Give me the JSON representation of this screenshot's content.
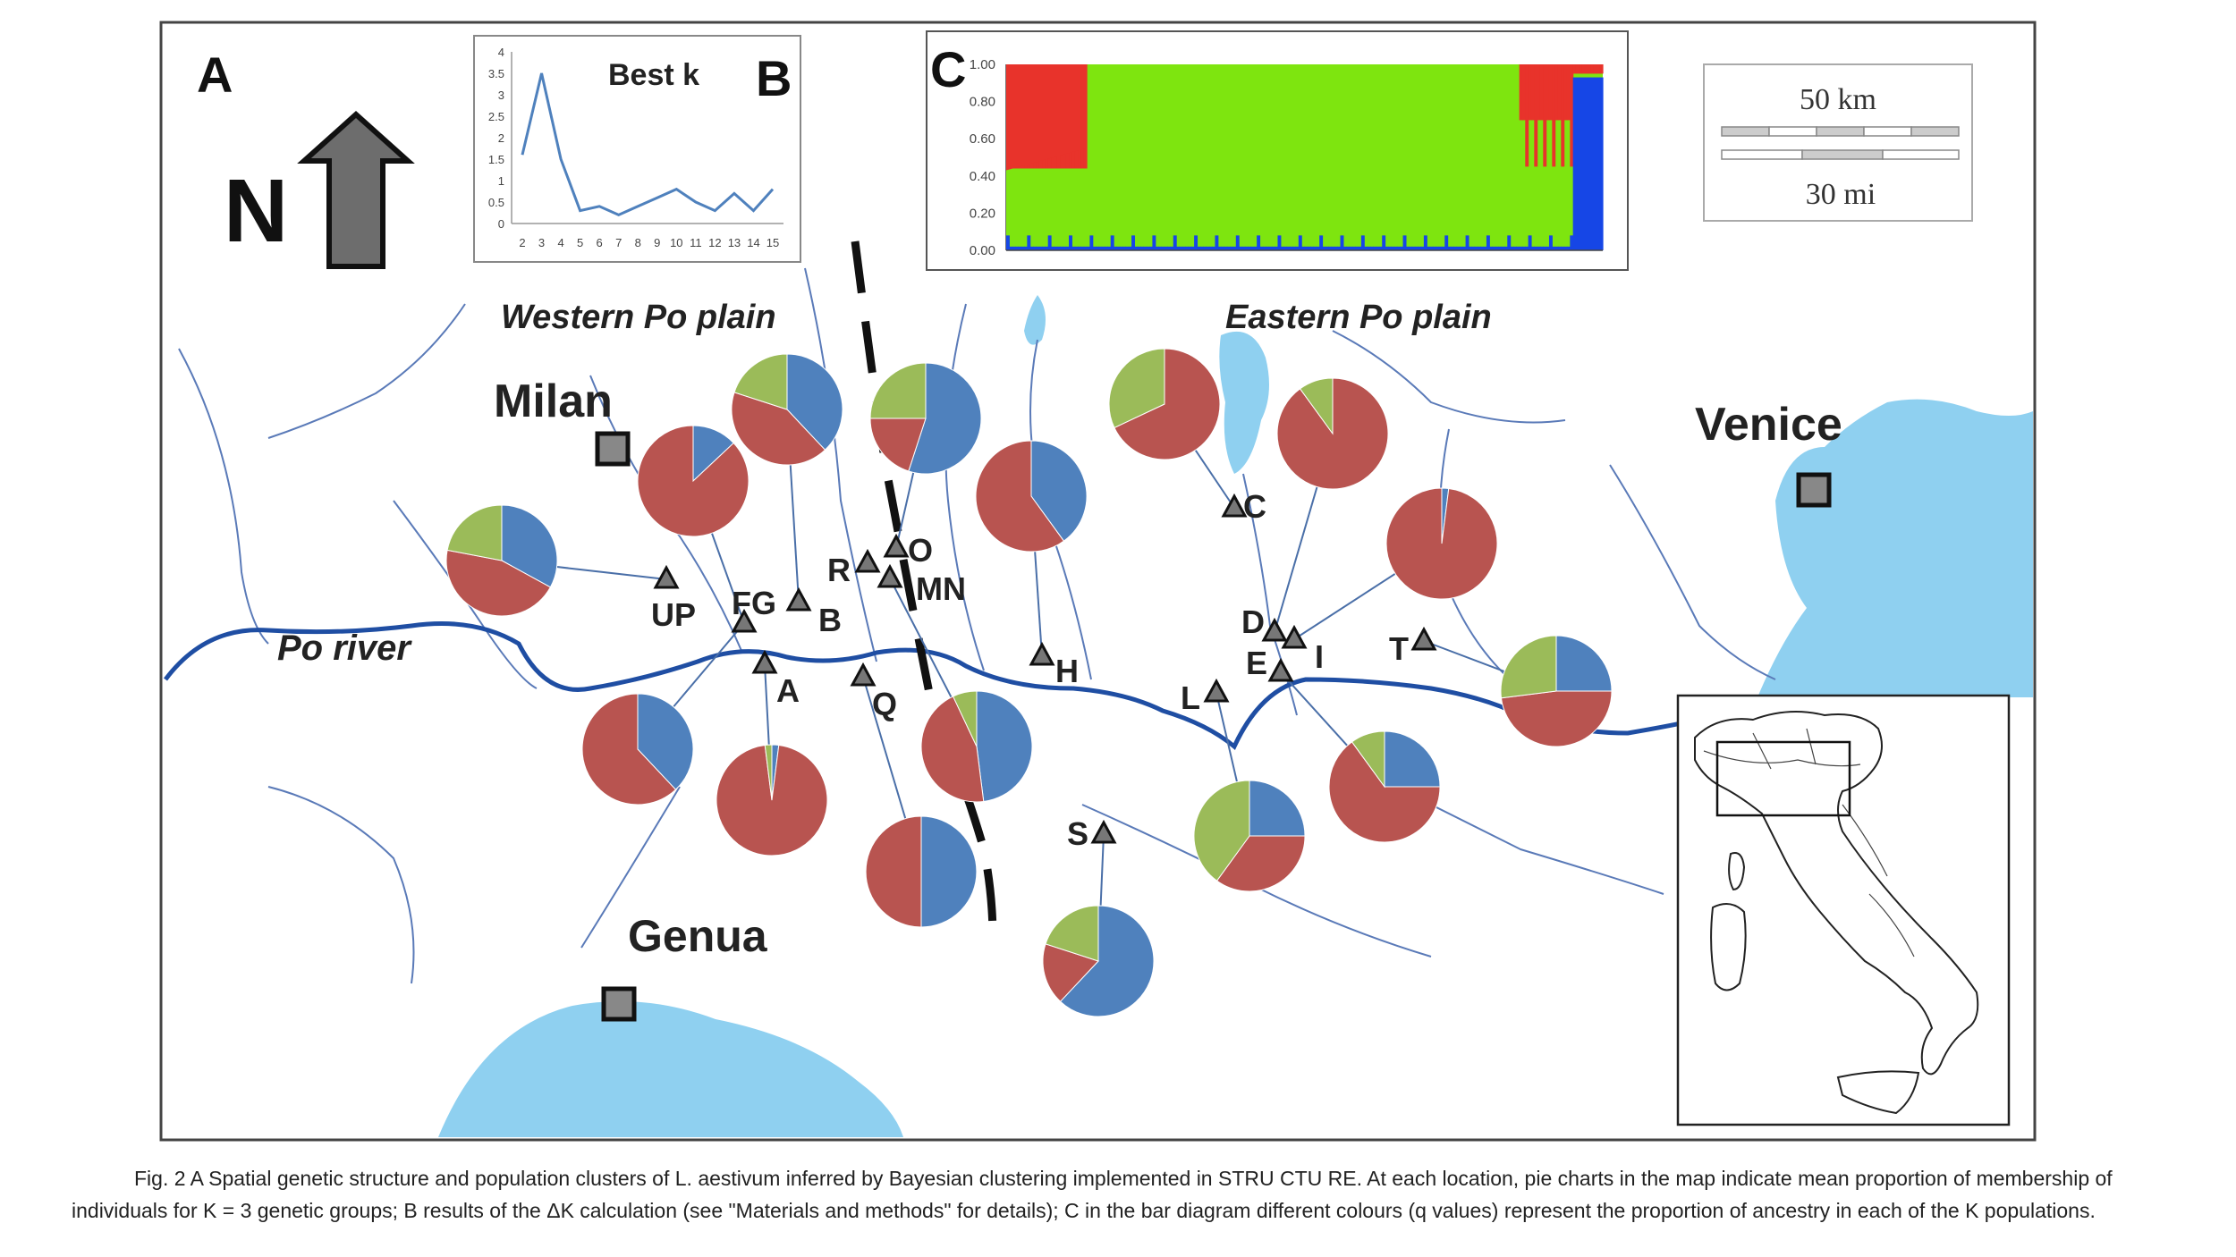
{
  "panels": {
    "a": "A",
    "b": "B",
    "c": "C"
  },
  "north": "N",
  "regions": {
    "west": "Western Po plain",
    "east": "Eastern Po plain"
  },
  "river": "Po river",
  "cities": [
    {
      "name": "Milan",
      "x": 685,
      "y": 502,
      "lx": 552,
      "ly": 466,
      "size": 52
    },
    {
      "name": "Venice",
      "x": 2028,
      "y": 548,
      "lx": 1895,
      "ly": 492,
      "size": 52
    },
    {
      "name": "Genua",
      "x": 692,
      "y": 1123,
      "lx": 702,
      "ly": 1064,
      "size": 50
    }
  ],
  "scale": {
    "km": "50 km",
    "mi": "30 mi"
  },
  "colors": {
    "red": "#b85450",
    "blue": "#4f81bd",
    "green": "#9bbb59",
    "water": "#8fd0f0",
    "river": "#1f4ea3",
    "bar_red": "#e8332b",
    "bar_green": "#7ee50f",
    "bar_blue": "#1646e6"
  },
  "sites": [
    {
      "label": "UP",
      "x": 745,
      "y": 648,
      "lx": 728,
      "ly": 700
    },
    {
      "label": "FG",
      "x": 832,
      "y": 697,
      "lx": 818,
      "ly": 687
    },
    {
      "label": "B",
      "x": 893,
      "y": 673,
      "lx": 915,
      "ly": 706
    },
    {
      "label": "A",
      "x": 855,
      "y": 743,
      "lx": 868,
      "ly": 785
    },
    {
      "label": "Q",
      "x": 965,
      "y": 757,
      "lx": 975,
      "ly": 800
    },
    {
      "label": "R",
      "x": 970,
      "y": 630,
      "lx": 925,
      "ly": 650
    },
    {
      "label": "O",
      "x": 1002,
      "y": 613,
      "lx": 1015,
      "ly": 628
    },
    {
      "label": "MN",
      "x": 995,
      "y": 647,
      "lx": 1024,
      "ly": 671
    },
    {
      "label": "H",
      "x": 1165,
      "y": 734,
      "lx": 1180,
      "ly": 763
    },
    {
      "label": "C",
      "x": 1380,
      "y": 568,
      "lx": 1390,
      "ly": 579
    },
    {
      "label": "D",
      "x": 1425,
      "y": 707,
      "lx": 1388,
      "ly": 708
    },
    {
      "label": "I",
      "x": 1447,
      "y": 715,
      "lx": 1470,
      "ly": 747
    },
    {
      "label": "E",
      "x": 1432,
      "y": 752,
      "lx": 1393,
      "ly": 754
    },
    {
      "label": "L",
      "x": 1360,
      "y": 775,
      "lx": 1320,
      "ly": 793
    },
    {
      "label": "T",
      "x": 1592,
      "y": 717,
      "lx": 1553,
      "ly": 738
    },
    {
      "label": "S",
      "x": 1234,
      "y": 933,
      "lx": 1193,
      "ly": 945
    }
  ],
  "pies": [
    {
      "x": 561,
      "y": 627,
      "r": 62,
      "red": 0.45,
      "blue": 0.33,
      "green": 0.22,
      "site": 0
    },
    {
      "x": 775,
      "y": 538,
      "r": 62,
      "red": 0.87,
      "blue": 0.13,
      "green": 0.0,
      "site": 1
    },
    {
      "x": 880,
      "y": 458,
      "r": 62,
      "red": 0.42,
      "blue": 0.38,
      "green": 0.2,
      "site": 2
    },
    {
      "x": 1035,
      "y": 468,
      "r": 62,
      "red": 0.2,
      "blue": 0.55,
      "green": 0.25,
      "site": 6
    },
    {
      "x": 1153,
      "y": 555,
      "r": 62,
      "red": 0.6,
      "blue": 0.4,
      "green": 0.0,
      "site": 8
    },
    {
      "x": 1302,
      "y": 452,
      "r": 62,
      "red": 0.68,
      "blue": 0.0,
      "green": 0.32,
      "site": 9
    },
    {
      "x": 1490,
      "y": 485,
      "r": 62,
      "red": 0.9,
      "blue": 0.0,
      "green": 0.1,
      "site": 10
    },
    {
      "x": 1612,
      "y": 608,
      "r": 62,
      "red": 0.98,
      "blue": 0.02,
      "green": 0.0,
      "site": 11
    },
    {
      "x": 1740,
      "y": 773,
      "r": 62,
      "red": 0.48,
      "blue": 0.25,
      "green": 0.27,
      "site": 14
    },
    {
      "x": 1548,
      "y": 880,
      "r": 62,
      "red": 0.65,
      "blue": 0.25,
      "green": 0.1,
      "site": 12
    },
    {
      "x": 1397,
      "y": 935,
      "r": 62,
      "red": 0.35,
      "blue": 0.25,
      "green": 0.4,
      "site": 13
    },
    {
      "x": 1228,
      "y": 1075,
      "r": 62,
      "red": 0.18,
      "blue": 0.62,
      "green": 0.2,
      "site": 15
    },
    {
      "x": 1030,
      "y": 975,
      "r": 62,
      "red": 0.5,
      "blue": 0.5,
      "green": 0.0,
      "site": 4
    },
    {
      "x": 1092,
      "y": 835,
      "r": 62,
      "red": 0.45,
      "blue": 0.48,
      "green": 0.07,
      "site": 7
    },
    {
      "x": 863,
      "y": 895,
      "r": 62,
      "red": 0.96,
      "blue": 0.02,
      "green": 0.02,
      "site": 3
    },
    {
      "x": 713,
      "y": 838,
      "r": 62,
      "red": 0.62,
      "blue": 0.38,
      "green": 0.0,
      "site": 1
    }
  ],
  "chart_data": [
    {
      "type": "line",
      "title": "Best k",
      "x": [
        2,
        3,
        4,
        5,
        6,
        7,
        8,
        9,
        10,
        11,
        12,
        13,
        14,
        15
      ],
      "y": [
        1.6,
        3.5,
        1.5,
        0.3,
        0.4,
        0.2,
        0.4,
        0.6,
        0.8,
        0.5,
        0.3,
        0.7,
        0.3,
        0.8
      ],
      "ylim": [
        0,
        4
      ],
      "yticks": [
        "4",
        "3.5",
        "3",
        "2.5",
        "2",
        "1.5",
        "1",
        "0.5",
        "0"
      ],
      "xticks": [
        "2",
        "3",
        "4",
        "5",
        "6",
        "7",
        "8",
        "9",
        "10",
        "11",
        "12",
        "13",
        "14",
        "15"
      ],
      "grid": false
    },
    {
      "type": "bar",
      "stacked": true,
      "ylim": [
        0,
        1
      ],
      "yticks": [
        "1.00",
        "0.80",
        "0.60",
        "0.40",
        "0.20",
        "0.00"
      ],
      "n_individuals": 200,
      "series": [
        {
          "color": "#e8332b",
          "description_of_segment": "red cluster: high in first individuals, near zero in middle, partial toward end"
        },
        {
          "color": "#7ee50f",
          "description_of_segment": "green cluster: dominant in middle individuals"
        },
        {
          "color": "#1646e6",
          "description_of_segment": "blue cluster: low baseline, dominant in last individuals"
        }
      ],
      "segments": [
        {
          "from": 0,
          "to": 27,
          "red_top": 0.98,
          "red_bottom": 0.42,
          "blue": 0.02
        },
        {
          "from": 27,
          "to": 172,
          "red_top": 0.0,
          "red_bottom": 0.0,
          "blue": 0.02
        },
        {
          "from": 172,
          "to": 190,
          "red_top": 0.98,
          "red_bottom": 0.6,
          "blue": 0.05
        },
        {
          "from": 190,
          "to": 200,
          "red_top": 0.98,
          "red_bottom": 0.95,
          "blue": 0.9
        }
      ]
    }
  ],
  "caption": {
    "line1": "Fig. 2 A Spatial genetic structure and population clusters of L. aestivum inferred by Bayesian clustering implemented in STRU CTU RE. At each location, pie charts in the map indicate mean proportion of membership of",
    "line2": "individuals for K = 3 genetic groups; B results of the ΔK calculation (see \"Materials and methods\" for details); C in the bar diagram different colours (q values) represent the proportion of ancestry in each of the K populations."
  }
}
